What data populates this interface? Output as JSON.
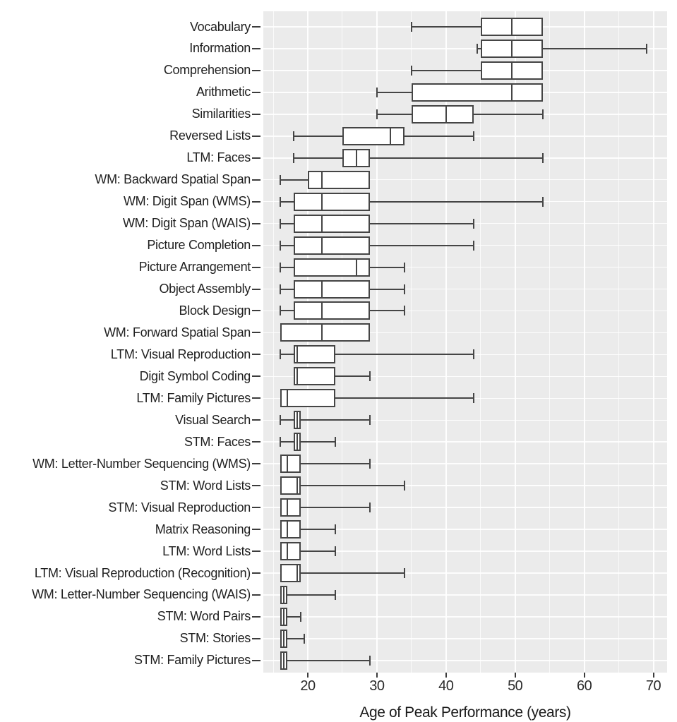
{
  "chart_data": {
    "type": "boxplot",
    "orientation": "horizontal",
    "title": "",
    "xlabel": "Age of Peak Performance (years)",
    "ylabel": "",
    "xlim": [
      13.5,
      72
    ],
    "x_major_ticks": [
      20,
      30,
      40,
      50,
      60,
      70
    ],
    "x_minor_gridlines": [
      15,
      25,
      35,
      45,
      55,
      65
    ],
    "grid": true,
    "legend": "none",
    "colors": {
      "panel_bg": "#ebebeb",
      "grid": "#ffffff",
      "box_fill": "#ffffff",
      "stroke": "#454545",
      "text": "#1f1f1f"
    },
    "rows": [
      {
        "label": "Vocabulary",
        "whisker_low": 35,
        "q1": 45,
        "median": 49.5,
        "q3": 54,
        "whisker_high": 54
      },
      {
        "label": "Information",
        "whisker_low": 44.5,
        "q1": 45,
        "median": 49.5,
        "q3": 54,
        "whisker_high": 69
      },
      {
        "label": "Comprehension",
        "whisker_low": 35,
        "q1": 45,
        "median": 49.5,
        "q3": 54,
        "whisker_high": 54
      },
      {
        "label": "Arithmetic",
        "whisker_low": 30,
        "q1": 35,
        "median": 49.5,
        "q3": 54,
        "whisker_high": 54
      },
      {
        "label": "Similarities",
        "whisker_low": 30,
        "q1": 35,
        "median": 40,
        "q3": 44,
        "whisker_high": 54
      },
      {
        "label": "Reversed Lists",
        "whisker_low": 18,
        "q1": 25,
        "median": 32,
        "q3": 34,
        "whisker_high": 44
      },
      {
        "label": "LTM: Faces",
        "whisker_low": 18,
        "q1": 25,
        "median": 27,
        "q3": 29,
        "whisker_high": 54
      },
      {
        "label": "WM: Backward Spatial Span",
        "whisker_low": 16,
        "q1": 20,
        "median": 22,
        "q3": 29,
        "whisker_high": 29
      },
      {
        "label": "WM: Digit Span (WMS)",
        "whisker_low": 16,
        "q1": 18,
        "median": 22,
        "q3": 29,
        "whisker_high": 54
      },
      {
        "label": "WM: Digit Span (WAIS)",
        "whisker_low": 16,
        "q1": 18,
        "median": 22,
        "q3": 29,
        "whisker_high": 44
      },
      {
        "label": "Picture Completion",
        "whisker_low": 16,
        "q1": 18,
        "median": 22,
        "q3": 29,
        "whisker_high": 44
      },
      {
        "label": "Picture Arrangement",
        "whisker_low": 16,
        "q1": 18,
        "median": 27,
        "q3": 29,
        "whisker_high": 34
      },
      {
        "label": "Object Assembly",
        "whisker_low": 16,
        "q1": 18,
        "median": 22,
        "q3": 29,
        "whisker_high": 34
      },
      {
        "label": "Block Design",
        "whisker_low": 16,
        "q1": 18,
        "median": 22,
        "q3": 29,
        "whisker_high": 34
      },
      {
        "label": "WM: Forward Spatial Span",
        "whisker_low": 16,
        "q1": 16,
        "median": 22,
        "q3": 29,
        "whisker_high": 29
      },
      {
        "label": "LTM: Visual Reproduction",
        "whisker_low": 16,
        "q1": 18,
        "median": 18.5,
        "q3": 24,
        "whisker_high": 44
      },
      {
        "label": "Digit Symbol Coding",
        "whisker_low": 18,
        "q1": 18,
        "median": 18.5,
        "q3": 24,
        "whisker_high": 29
      },
      {
        "label": "LTM: Family Pictures",
        "whisker_low": 16,
        "q1": 16,
        "median": 17,
        "q3": 24,
        "whisker_high": 44
      },
      {
        "label": "Visual Search",
        "whisker_low": 16,
        "q1": 18,
        "median": 18.5,
        "q3": 19,
        "whisker_high": 29
      },
      {
        "label": "STM: Faces",
        "whisker_low": 16,
        "q1": 18,
        "median": 18.5,
        "q3": 19,
        "whisker_high": 24
      },
      {
        "label": "WM: Letter-Number Sequencing (WMS)",
        "whisker_low": 16,
        "q1": 16,
        "median": 17,
        "q3": 19,
        "whisker_high": 29
      },
      {
        "label": "STM: Word Lists",
        "whisker_low": 16,
        "q1": 16,
        "median": 18.5,
        "q3": 19,
        "whisker_high": 34
      },
      {
        "label": "STM: Visual Reproduction",
        "whisker_low": 16,
        "q1": 16,
        "median": 17,
        "q3": 19,
        "whisker_high": 29
      },
      {
        "label": "Matrix Reasoning",
        "whisker_low": 16,
        "q1": 16,
        "median": 17,
        "q3": 19,
        "whisker_high": 24
      },
      {
        "label": "LTM: Word Lists",
        "whisker_low": 16,
        "q1": 16,
        "median": 17,
        "q3": 19,
        "whisker_high": 24
      },
      {
        "label": "LTM: Visual Reproduction (Recognition)",
        "whisker_low": 16,
        "q1": 16,
        "median": 18.5,
        "q3": 19,
        "whisker_high": 34
      },
      {
        "label": "WM: Letter-Number Sequencing (WAIS)",
        "whisker_low": 16,
        "q1": 16,
        "median": 16.5,
        "q3": 17,
        "whisker_high": 24
      },
      {
        "label": "STM: Word Pairs",
        "whisker_low": 16,
        "q1": 16,
        "median": 16.5,
        "q3": 17,
        "whisker_high": 19
      },
      {
        "label": "STM: Stories",
        "whisker_low": 16,
        "q1": 16,
        "median": 16.5,
        "q3": 17,
        "whisker_high": 19.5
      },
      {
        "label": "STM: Family Pictures",
        "whisker_low": 16,
        "q1": 16,
        "median": 16.5,
        "q3": 17,
        "whisker_high": 29
      }
    ]
  }
}
